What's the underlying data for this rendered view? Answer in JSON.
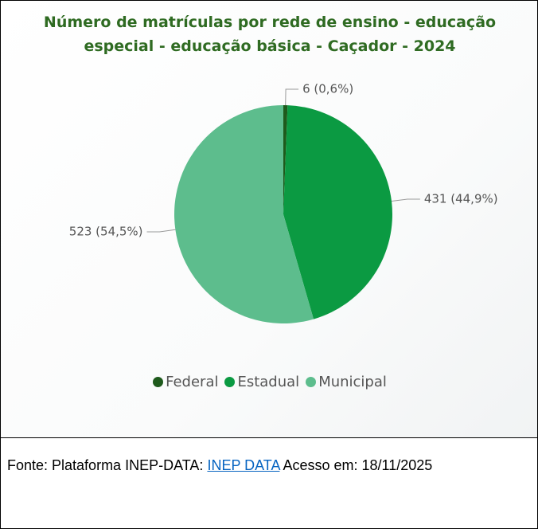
{
  "chart_data": {
    "type": "pie",
    "title": "Número de matrículas por rede de ensino - educação especial - educação básica - Caçador - 2024",
    "categories": [
      "Federal",
      "Estadual",
      "Municipal"
    ],
    "values": [
      6,
      431,
      523
    ],
    "value_labels": [
      "6 (0,6%)",
      "431 (44,9%)",
      "523 (54,5%)"
    ],
    "colors": [
      "#1e5a1c",
      "#0b9a42",
      "#5dbd8d"
    ],
    "legend": "bottom"
  },
  "source": {
    "prefix": "Fonte: Plataforma INEP-DATA:",
    "link": "INEP DATA",
    "suffix": "Acesso em: 18/11/2025"
  }
}
